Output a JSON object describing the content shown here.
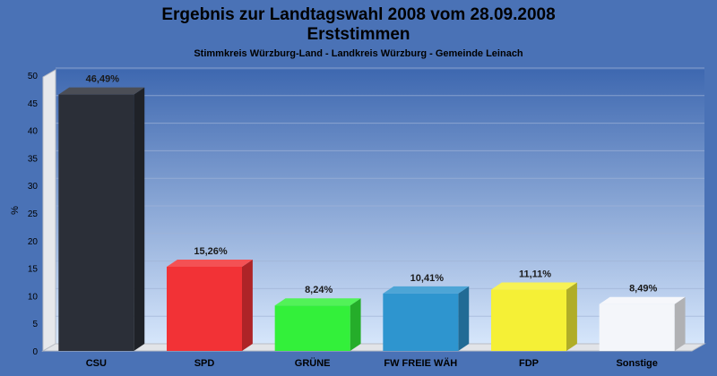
{
  "chart_data": {
    "type": "bar",
    "title": "Ergebnis zur Landtagswahl 2008 vom 28.09.2008",
    "title2": "Erststimmen",
    "subtitle": "Stimmkreis Würzburg-Land - Landkreis Würzburg - Gemeinde Leinach",
    "ylabel": "%",
    "xlabel": "",
    "ylim": [
      0,
      50
    ],
    "yticks": [
      0,
      5,
      10,
      15,
      20,
      25,
      30,
      35,
      40,
      45,
      50
    ],
    "categories": [
      "CSU",
      "SPD",
      "GRÜNE",
      "FW FREIE WÄH",
      "FDP",
      "Sonstige"
    ],
    "values": [
      46.49,
      15.26,
      8.24,
      10.41,
      11.11,
      8.49
    ],
    "value_labels": [
      "46,49%",
      "15,26%",
      "8,24%",
      "10,41%",
      "11,11%",
      "8,49%"
    ],
    "colors": [
      "#2b2f38",
      "#f23236",
      "#33f03a",
      "#2e95cf",
      "#f5f036",
      "#f4f6fa"
    ],
    "grid": true,
    "legend": "none"
  }
}
